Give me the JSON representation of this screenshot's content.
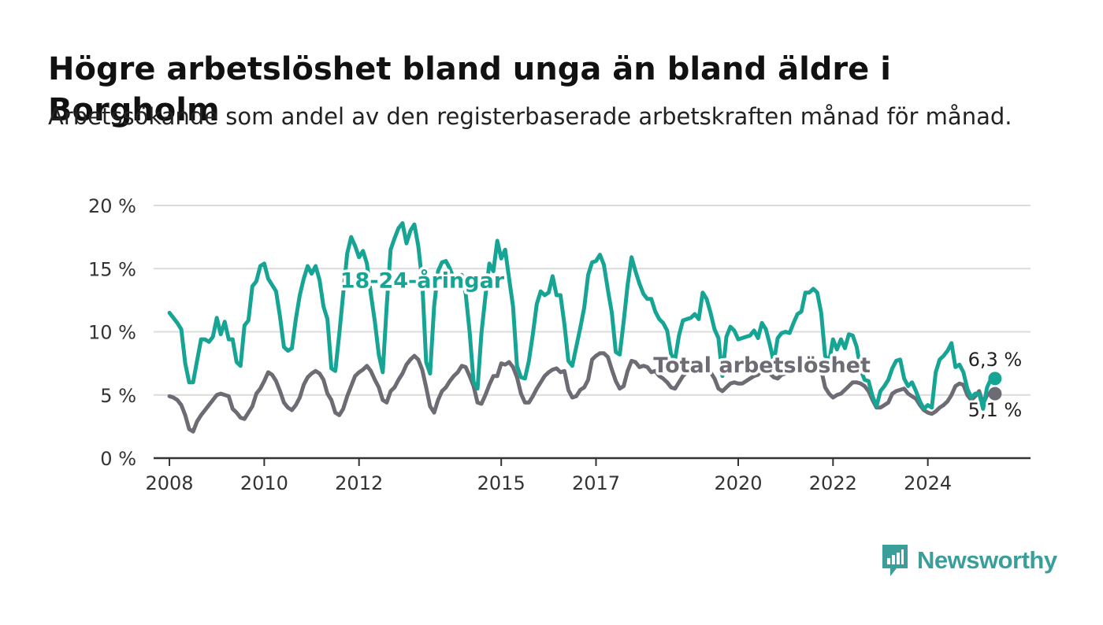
{
  "title": "Högre arbetslöshet bland unga än bland äldre i Borgholm",
  "subtitle": "Arbetssökande som andel av den registerbaserade arbetskraften månad för månad.",
  "brand": {
    "name": "Newsworthy",
    "icon": "newsworthy-logo-icon",
    "color": "#3a9e9a"
  },
  "chart_data": {
    "type": "line",
    "x_ticks": [
      "2008",
      "2010",
      "2012",
      "2015",
      "2017",
      "2020",
      "2022",
      "2024"
    ],
    "y_ticks": [
      0,
      5,
      10,
      15,
      20
    ],
    "y_tick_labels": [
      "0 %",
      "5 %",
      "10 %",
      "15 %",
      "20 %"
    ],
    "ylim": [
      0,
      20
    ],
    "x_range": [
      "2007-09",
      "2026-03"
    ],
    "start_month": "2008-01",
    "grid": true,
    "series": [
      {
        "name": "18-24-åringar",
        "color": "#16a594",
        "end_label": "6,3 %",
        "values": [
          11.5,
          11.1,
          10.7,
          10.2,
          7.5,
          6.0,
          6.0,
          7.7,
          9.4,
          9.4,
          9.2,
          9.6,
          11.1,
          9.8,
          10.8,
          9.4,
          9.4,
          7.6,
          7.3,
          10.5,
          10.9,
          13.6,
          14.0,
          15.2,
          15.4,
          14.2,
          13.7,
          13.2,
          11.2,
          8.8,
          8.5,
          8.7,
          11.0,
          12.9,
          14.2,
          15.2,
          14.6,
          15.2,
          14.1,
          12.0,
          11.0,
          7.1,
          6.9,
          9.8,
          13.0,
          16.2,
          17.5,
          16.8,
          15.9,
          16.4,
          15.4,
          13.0,
          10.8,
          8.2,
          6.8,
          12.0,
          16.5,
          17.4,
          18.2,
          18.6,
          17.0,
          18.0,
          18.5,
          16.8,
          14.0,
          7.6,
          6.7,
          12.0,
          14.8,
          15.5,
          15.6,
          15.0,
          14.2,
          14.0,
          14.5,
          13.0,
          10.0,
          6.0,
          5.5,
          9.9,
          12.8,
          15.4,
          14.8,
          17.2,
          15.8,
          16.5,
          14.2,
          12.0,
          7.3,
          6.4,
          6.3,
          7.7,
          9.8,
          12.2,
          13.2,
          12.9,
          13.1,
          14.4,
          12.9,
          12.9,
          10.6,
          7.7,
          7.3,
          8.8,
          10.3,
          11.9,
          14.5,
          15.5,
          15.6,
          16.1,
          15.3,
          13.3,
          11.5,
          8.4,
          8.2,
          10.8,
          13.7,
          15.9,
          14.8,
          13.8,
          13.0,
          12.6,
          12.6,
          11.6,
          11.0,
          10.7,
          10.1,
          8.2,
          7.8,
          9.7,
          10.9,
          11.0,
          11.1,
          11.4,
          11.0,
          13.1,
          12.6,
          11.5,
          10.2,
          9.5,
          6.5,
          9.6,
          10.4,
          10.1,
          9.4,
          9.5,
          9.6,
          9.7,
          10.1,
          9.5,
          10.7,
          10.2,
          9.0,
          7.6,
          9.5,
          9.9,
          10.0,
          9.9,
          10.7,
          11.4,
          11.6,
          13.1,
          13.1,
          13.4,
          13.1,
          11.5,
          8.1,
          7.6,
          9.4,
          8.6,
          9.4,
          8.7,
          9.8,
          9.7,
          8.8,
          7.0,
          6.2,
          6.1,
          4.9,
          4.1,
          5.3,
          5.7,
          6.2,
          7.1,
          7.7,
          7.8,
          6.3,
          5.7,
          6.0,
          5.3,
          4.5,
          3.9,
          4.2,
          4.0,
          6.8,
          7.8,
          8.1,
          8.5,
          9.1,
          7.2,
          7.4,
          6.8,
          5.5,
          4.8,
          5.1,
          5.1,
          3.9,
          5.6,
          6.3,
          6.3
        ]
      },
      {
        "name": "Total arbetslöshet",
        "color": "#6d6b73",
        "end_label": "5,1 %",
        "values": [
          4.9,
          4.8,
          4.6,
          4.2,
          3.4,
          2.3,
          2.1,
          2.9,
          3.4,
          3.8,
          4.2,
          4.6,
          5.0,
          5.1,
          5.0,
          4.9,
          3.9,
          3.6,
          3.2,
          3.1,
          3.6,
          4.1,
          5.1,
          5.5,
          6.1,
          6.8,
          6.6,
          6.1,
          5.3,
          4.4,
          4.0,
          3.8,
          4.2,
          4.8,
          5.8,
          6.4,
          6.7,
          6.9,
          6.7,
          6.2,
          5.1,
          4.6,
          3.6,
          3.4,
          3.9,
          4.9,
          5.7,
          6.5,
          6.8,
          7.0,
          7.3,
          6.9,
          6.2,
          5.6,
          4.6,
          4.4,
          5.3,
          5.6,
          6.2,
          6.7,
          7.4,
          7.8,
          8.1,
          7.8,
          7.0,
          5.6,
          4.1,
          3.6,
          4.6,
          5.3,
          5.6,
          6.1,
          6.5,
          6.8,
          7.3,
          7.2,
          6.5,
          5.7,
          4.4,
          4.3,
          5.0,
          5.8,
          6.5,
          6.5,
          7.5,
          7.4,
          7.6,
          7.2,
          6.4,
          5.1,
          4.4,
          4.4,
          4.9,
          5.5,
          6.0,
          6.5,
          6.8,
          7.0,
          7.1,
          6.8,
          6.9,
          5.4,
          4.8,
          4.9,
          5.4,
          5.6,
          6.2,
          7.8,
          8.1,
          8.3,
          8.3,
          8.0,
          7.0,
          6.1,
          5.5,
          5.7,
          6.9,
          7.7,
          7.6,
          7.2,
          7.3,
          7.2,
          6.8,
          6.9,
          6.5,
          6.3,
          6.0,
          5.6,
          5.5,
          6.0,
          6.5,
          6.8,
          7.0,
          7.1,
          6.9,
          7.2,
          7.0,
          6.8,
          6.3,
          5.5,
          5.3,
          5.6,
          5.9,
          6.0,
          5.9,
          5.9,
          6.1,
          6.3,
          6.5,
          6.6,
          7.0,
          6.8,
          6.7,
          6.4,
          6.3,
          6.6,
          6.7,
          6.8,
          6.8,
          7.1,
          7.3,
          7.5,
          7.6,
          7.5,
          7.4,
          7.0,
          5.6,
          5.1,
          4.8,
          5.0,
          5.1,
          5.4,
          5.7,
          6.0,
          6.0,
          5.9,
          5.7,
          5.3,
          4.6,
          4.0,
          4.0,
          4.2,
          4.4,
          5.1,
          5.3,
          5.4,
          5.5,
          5.1,
          4.9,
          4.7,
          4.2,
          3.8,
          3.6,
          3.5,
          3.7,
          4.0,
          4.2,
          4.5,
          5.0,
          5.7,
          5.9,
          5.8,
          5.0,
          4.6,
          4.9,
          5.3,
          4.3,
          5.0,
          5.2,
          5.1
        ]
      }
    ],
    "annotations": [
      {
        "text": "18-24-åringar",
        "series": 0,
        "at_date": "2013-05",
        "at_value": 13.5
      },
      {
        "text": "Total arbetslöshet",
        "series": 1,
        "at_date": "2020-07",
        "at_value": 6.8
      }
    ]
  }
}
